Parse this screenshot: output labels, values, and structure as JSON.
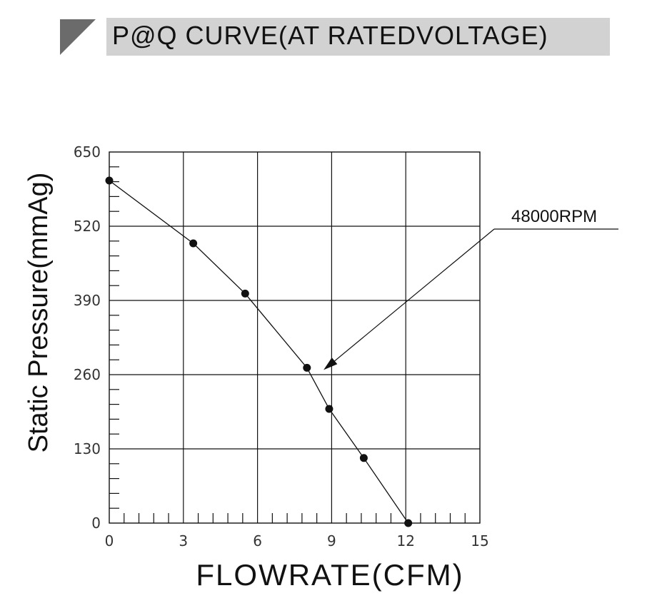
{
  "chart_data": {
    "type": "line",
    "title": "P@Q CURVE(AT RATEDVOLTAGE)",
    "xlabel": "FLOWRATE(CFM)",
    "ylabel": "Static Pressure(mmAg)",
    "xlim": [
      0,
      15
    ],
    "ylim": [
      0,
      650
    ],
    "xticks": [
      0,
      3,
      6,
      9,
      12,
      15
    ],
    "yticks": [
      0,
      130,
      260,
      390,
      520,
      650
    ],
    "grid": true,
    "series": [
      {
        "name": "48000RPM",
        "x": [
          0,
          3.4,
          5.5,
          8.0,
          8.9,
          10.3,
          12.1
        ],
        "y": [
          600,
          490,
          402,
          272,
          200,
          114,
          0
        ]
      }
    ],
    "annotation": {
      "text": "48000RPM",
      "target": {
        "x": 8.5,
        "y": 272
      }
    }
  },
  "colors": {
    "line": "#111111",
    "grid": "#111111",
    "title_bg": "#d2d2d2",
    "marker": "#6b6b6b"
  }
}
